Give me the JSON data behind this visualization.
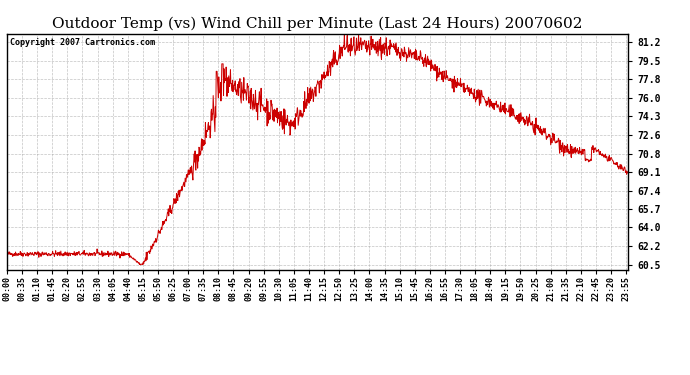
{
  "title": "Outdoor Temp (vs) Wind Chill per Minute (Last 24 Hours) 20070602",
  "copyright_text": "Copyright 2007 Cartronics.com",
  "line_color": "#cc0000",
  "background_color": "#ffffff",
  "plot_bg_color": "#ffffff",
  "grid_color": "#aaaaaa",
  "title_fontsize": 11,
  "yticks": [
    60.5,
    62.2,
    64.0,
    65.7,
    67.4,
    69.1,
    70.8,
    72.6,
    74.3,
    76.0,
    77.8,
    79.5,
    81.2
  ],
  "ylim": [
    60.0,
    82.0
  ],
  "xtick_interval_minutes": 35,
  "num_minutes": 1440,
  "figwidth": 6.9,
  "figheight": 3.75,
  "dpi": 100
}
